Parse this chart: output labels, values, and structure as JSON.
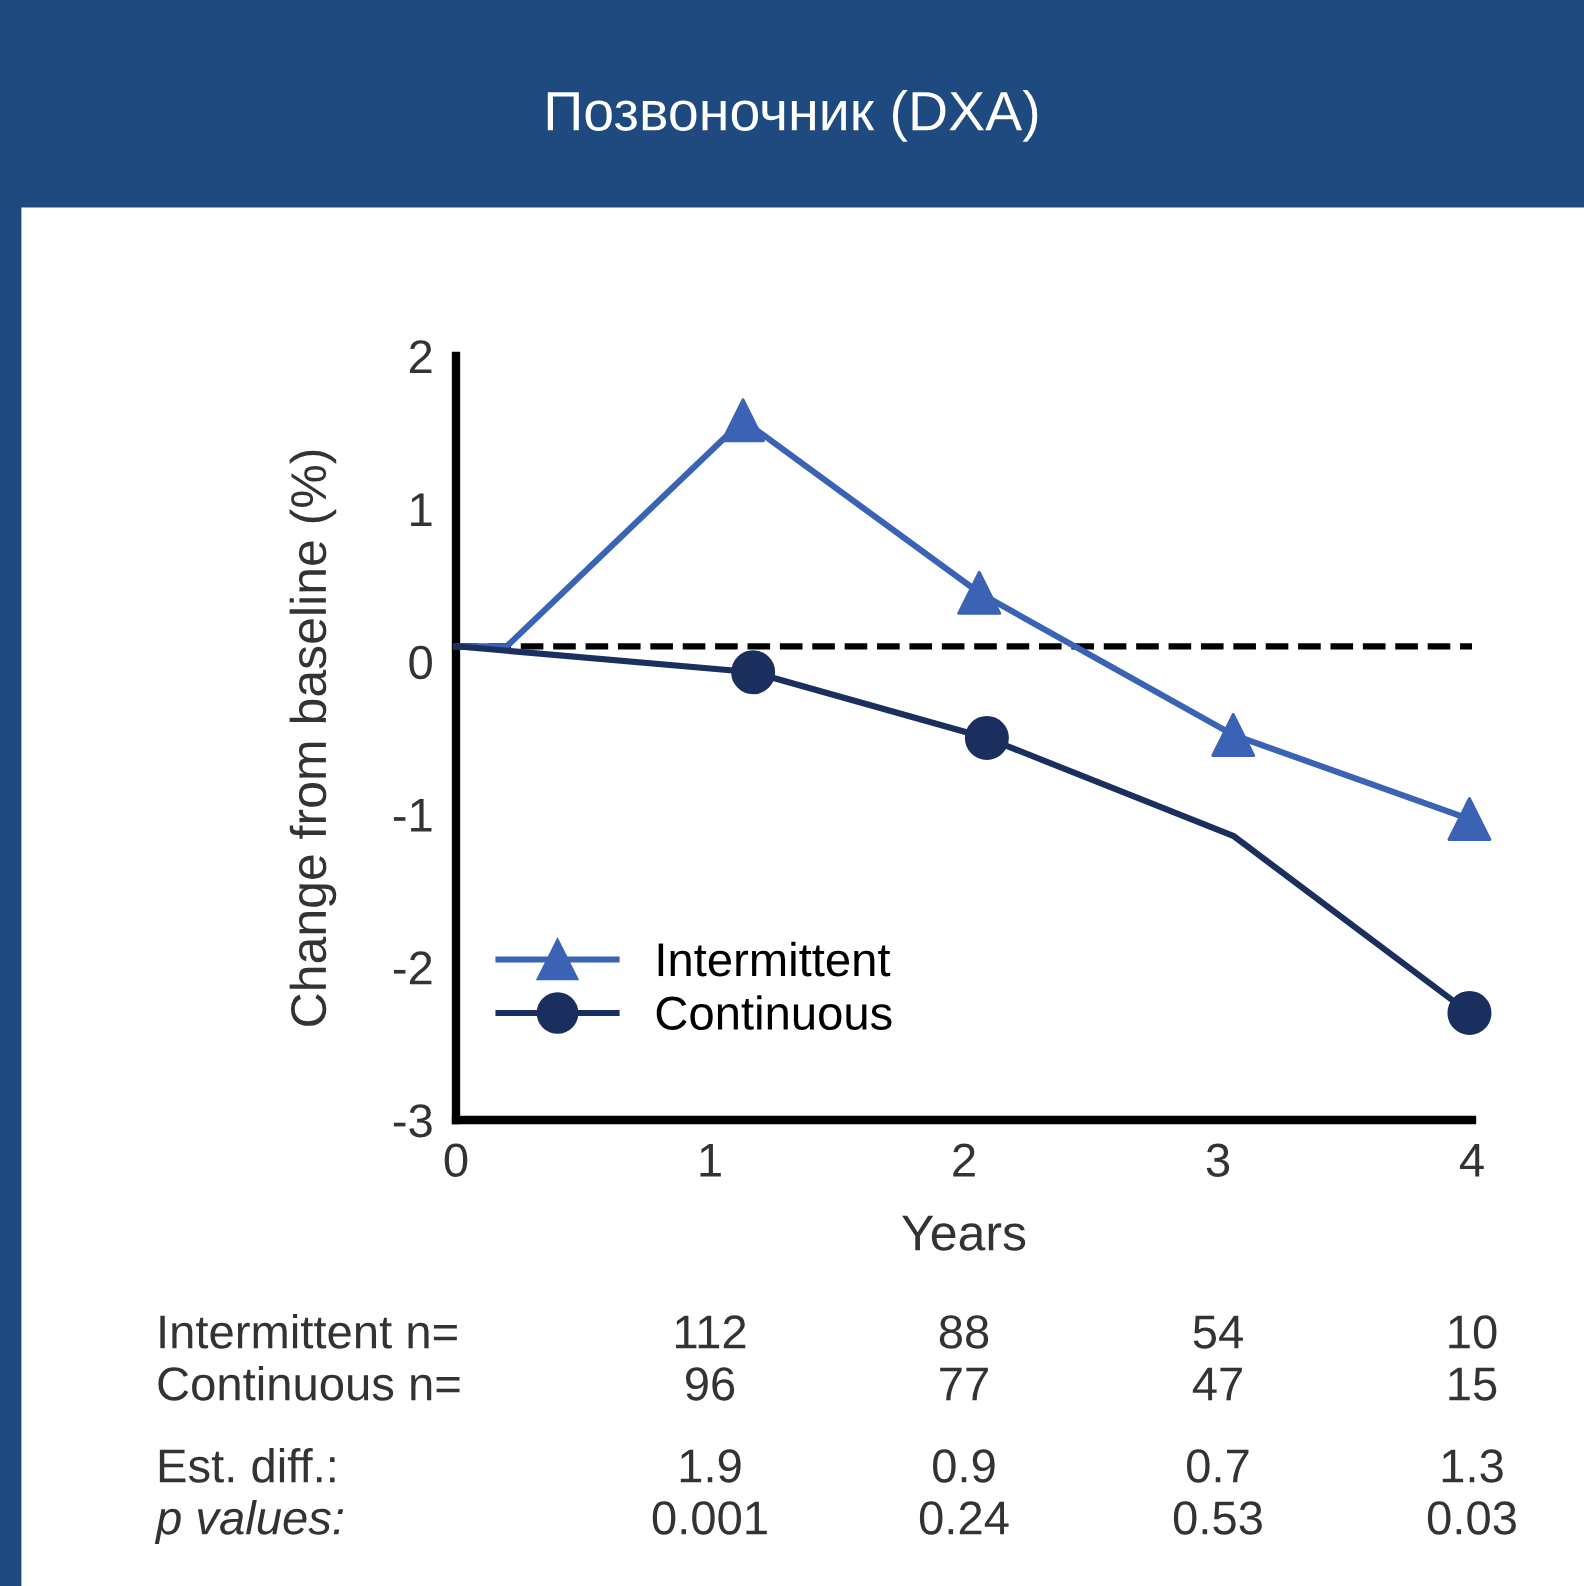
{
  "chart_data": {
    "type": "line",
    "title": "Позвоночник (DXA)",
    "xlabel": "Years",
    "ylabel": "Change from baseline (%)",
    "xlim": [
      0,
      4
    ],
    "xticks": [
      0,
      1,
      2,
      3,
      4
    ],
    "ylim": [
      -3,
      2
    ],
    "yticks": [
      -3,
      -2,
      -1,
      0,
      1,
      2
    ],
    "grid": false,
    "legend": "bottom left",
    "series": [
      {
        "name": "Intermittent",
        "color": "#3a62b5",
        "marker": "none",
        "x": [
          0,
          0.2,
          1.13,
          2.06,
          3.06,
          3.99
        ],
        "values": [
          0.1,
          0.1,
          1.58,
          0.45,
          -0.48,
          -1.03
        ]
      },
      {
        "name": "Continuous",
        "color": "#1a2f5e",
        "marker": "none",
        "x": [
          0,
          1.17,
          2.09,
          3.06,
          3.99
        ],
        "values": [
          0.1,
          -0.07,
          -0.5,
          -1.14,
          -2.3
        ]
      },
      {
        "color": "#3a62b5",
        "type": "scatter",
        "marker": "triangle",
        "x": [
          1.13,
          2.06,
          3.06,
          3.99
        ],
        "values": [
          1.58,
          0.45,
          -0.48,
          -1.03
        ]
      },
      {
        "color": "#1a2f5e",
        "type": "scatter",
        "marker": "circle",
        "x": [
          1.17,
          2.09,
          3.99
        ],
        "values": [
          -0.07,
          -0.5,
          -2.3
        ]
      }
    ],
    "ref_lines": [
      {
        "axis": "y",
        "value": 0.1,
        "color": "#000000",
        "line_style": "dashed"
      }
    ],
    "annotations": [
      "Intermittent n=",
      "112",
      "88",
      "54",
      "10",
      "Continuous n=",
      "96",
      "77",
      "47",
      "15",
      "Est. diff.:",
      "1.9",
      "0.9",
      "0.7",
      "1.3",
      "p values:",
      "0.001",
      "0.24",
      "0.53",
      "0.03"
    ]
  }
}
